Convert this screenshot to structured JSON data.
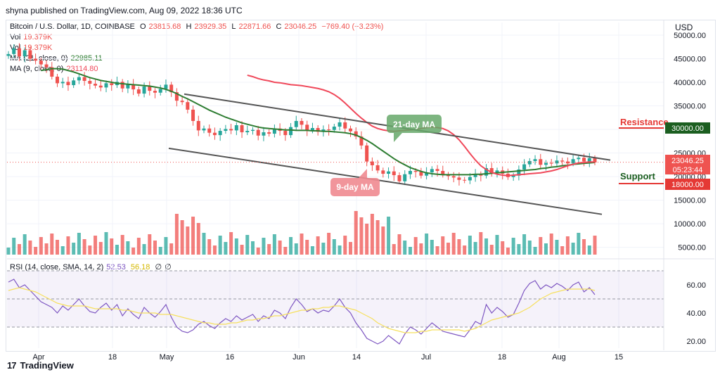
{
  "header": {
    "publisher": "shyna published on TradingView.com, Aug 09, 2022 18:36 UTC"
  },
  "legend": {
    "symbol": "Bitcoin / U.S. Dollar, 1D, COINBASE",
    "o_label": "O",
    "open": "23815.68",
    "h_label": "H",
    "high": "23929.35",
    "l_label": "L",
    "low": "22871.66",
    "c_label": "C",
    "close": "23046.25",
    "change": "−769.40 (−3.23%)",
    "vol_label": "Vol",
    "vol_value": "19.379K",
    "vol2_label": "Vol",
    "vol2_value": "19.379K",
    "ma21_label": "MA (21, close, 0)",
    "ma21_value": "22985.11",
    "ma9_label": "MA (9, close, 0)",
    "ma9_value": "23114.80",
    "rsi_label": "RSI (14, close, SMA, 14, 2)",
    "rsi_value": "52.53",
    "rsi_sma": "56.18",
    "rsi_extra1": "∅",
    "rsi_extra2": "∅"
  },
  "currency": "USD",
  "annotations": {
    "ma21": "21-day MA",
    "ma9": "9-day MA",
    "resistance": "Resistance",
    "resistance_value": "30000.00",
    "support": "Support",
    "support_value": "18000.00",
    "last_price": "23046.25",
    "countdown": "05:23:44"
  },
  "colors": {
    "up": "#26a69a",
    "down": "#ef5350",
    "ma21": "#2e7d32",
    "ma9": "#f0485a",
    "rsi": "#7e57c2",
    "rsi_sma": "#f6e05e",
    "resistance": "#e53935",
    "support": "#e53935",
    "channel": "#555555"
  },
  "footer": {
    "brand": "TradingView"
  },
  "chart_data": {
    "type": "candlestick",
    "price_axis_ticks": [
      "50000.00",
      "45000.00",
      "40000.00",
      "35000.00",
      "30000.00",
      "25000.00",
      "20000.00",
      "15000.00",
      "10000.00",
      "5000.00"
    ],
    "x_ticks": [
      "Apr",
      "18",
      "May",
      "16",
      "Jun",
      "14",
      "Jul",
      "18",
      "Aug",
      "15"
    ],
    "rsi_ticks": [
      "60.00",
      "40.00",
      "20.00"
    ],
    "price_range": [
      3000,
      50000
    ],
    "rsi_range": [
      15,
      75
    ],
    "close_series": [
      46000,
      47200,
      45500,
      46800,
      45000,
      44600,
      43800,
      43200,
      41200,
      39800,
      40100,
      39400,
      40400,
      41100,
      40300,
      39700,
      39300,
      38900,
      39800,
      39400,
      40100,
      38700,
      39600,
      38500,
      37600,
      39100,
      38200,
      37800,
      38600,
      39500,
      37900,
      36100,
      35800,
      34200,
      31800,
      29800,
      30200,
      29300,
      28800,
      29700,
      30100,
      29800,
      30900,
      29400,
      29700,
      29900,
      28700,
      29400,
      29100,
      30200,
      29700,
      28800,
      30500,
      31800,
      31000,
      29800,
      30300,
      29500,
      30000,
      29900,
      30600,
      31500,
      30200,
      29600,
      28500,
      26600,
      23200,
      22400,
      21300,
      20600,
      21100,
      20300,
      19000,
      20500,
      21200,
      21000,
      20200,
      20900,
      21600,
      21200,
      20400,
      20100,
      19800,
      19300,
      19200,
      19900,
      20500,
      20200,
      21800,
      20800,
      21300,
      20600,
      19900,
      20200,
      21500,
      22600,
      23300,
      23700,
      22500,
      22900,
      22800,
      23400,
      23200,
      22800,
      23700,
      24000,
      23200,
      23900,
      23000
    ],
    "ma21": [
      42500,
      42700,
      42900,
      42900,
      42800,
      42500,
      42200,
      41800,
      41400,
      41000,
      40700,
      40400,
      40200,
      40000,
      39800,
      39700,
      39600,
      39500,
      39400,
      39300,
      39200,
      39000,
      38800,
      38500,
      38100,
      37600,
      37000,
      36500,
      35900,
      35300,
      34700,
      34100,
      33600,
      33100,
      32600,
      32200,
      31800,
      31400,
      31100,
      30800,
      30500,
      30300,
      30200,
      30100,
      30000,
      29900,
      29900,
      29800,
      29800,
      29800,
      29700,
      29700,
      29600,
      29600,
      29500,
      29400,
      29300,
      29100,
      28800,
      28300,
      27700,
      27000,
      26200,
      25400,
      24600,
      23800,
      23100,
      22500,
      21900,
      21500,
      21100,
      20800,
      20600,
      20500,
      20400,
      20400,
      20400,
      20400,
      20400,
      20400,
      20500,
      20500,
      20600,
      20700,
      20800,
      20900,
      21000,
      21100,
      21200,
      21300,
      21400,
      21500,
      21700,
      21800,
      22000,
      22100,
      22300,
      22400,
      22600,
      22700,
      22800,
      22900,
      23000
    ],
    "ma9": [
      41500,
      41200,
      40800,
      40500,
      40300,
      40000,
      39900,
      39700,
      39500,
      39400,
      39300,
      39100,
      38900,
      38700,
      38400,
      38000,
      37400,
      36600,
      35600,
      34500,
      33400,
      32400,
      31500,
      30700,
      30200,
      29900,
      29700,
      29600,
      29700,
      29800,
      29900,
      30000,
      30200,
      30400,
      30500,
      30400,
      30200,
      29700,
      28900,
      27800,
      26400,
      24900,
      23500,
      22300,
      21500,
      20900,
      20500,
      20300,
      20200,
      20300,
      20400,
      20500,
      20600,
      20700,
      20800,
      21000,
      21200,
      21500,
      21900,
      22300,
      22600,
      22900,
      23000,
      23100,
      23100
    ],
    "rsi": [
      62,
      64,
      58,
      60,
      56,
      52,
      48,
      46,
      44,
      40,
      45,
      42,
      46,
      50,
      45,
      41,
      40,
      44,
      47,
      42,
      46,
      38,
      43,
      39,
      36,
      44,
      40,
      37,
      41,
      46,
      37,
      30,
      27,
      26,
      28,
      32,
      34,
      31,
      29,
      33,
      36,
      34,
      38,
      35,
      37,
      39,
      34,
      38,
      36,
      42,
      40,
      36,
      44,
      50,
      46,
      41,
      43,
      40,
      42,
      41,
      45,
      50,
      44,
      40,
      33,
      28,
      22,
      20,
      18,
      20,
      24,
      21,
      18,
      25,
      30,
      28,
      25,
      29,
      33,
      30,
      27,
      26,
      25,
      24,
      23,
      28,
      34,
      32,
      46,
      40,
      44,
      41,
      37,
      39,
      47,
      56,
      61,
      63,
      57,
      60,
      58,
      61,
      59,
      56,
      60,
      62,
      55,
      58,
      53
    ],
    "rsi_sma": [
      56,
      57,
      58,
      57,
      56,
      55,
      53,
      51,
      49,
      47,
      46,
      45,
      45,
      45,
      45,
      44,
      43,
      43,
      43,
      43,
      43,
      42,
      42,
      41,
      40,
      40,
      40,
      40,
      39,
      39,
      39,
      38,
      37,
      36,
      35,
      34,
      33,
      33,
      32,
      32,
      32,
      33,
      33,
      34,
      35,
      35,
      36,
      36,
      37,
      38,
      38,
      39,
      40,
      41,
      42,
      42,
      43,
      43,
      44,
      44,
      45,
      45,
      44,
      43,
      42,
      40,
      38,
      36,
      33,
      31,
      29,
      28,
      27,
      26,
      26,
      26,
      27,
      27,
      28,
      28,
      28,
      28,
      28,
      28,
      27,
      28,
      29,
      31,
      33,
      35,
      36,
      37,
      38,
      39,
      40,
      42,
      44,
      47,
      50,
      52,
      54,
      55,
      56,
      57,
      57,
      57,
      57,
      57,
      56
    ]
  }
}
